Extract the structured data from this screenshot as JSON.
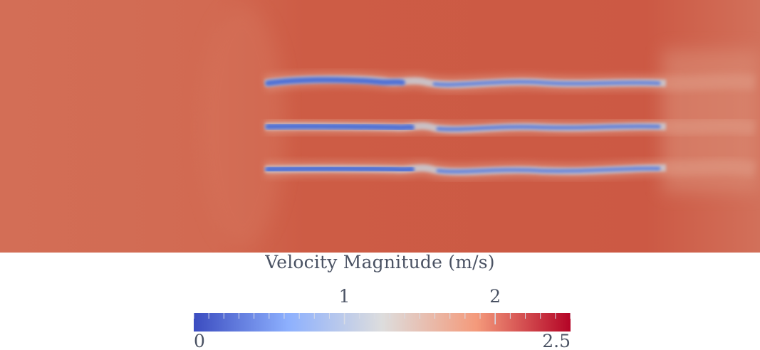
{
  "legend": {
    "title": "Velocity Magnitude (m/s)",
    "range": [
      0,
      2.5
    ],
    "min_label": "0",
    "max_label": "2.5",
    "major_ticks": [
      {
        "value": 1,
        "label": "1"
      },
      {
        "value": 2,
        "label": "2"
      }
    ],
    "colormap": "cool-to-warm",
    "colormap_stops": [
      "#3b4cc0",
      "#8db0fe",
      "#dddddd",
      "#f49a7b",
      "#b40426"
    ]
  },
  "colors": {
    "freestream": "#cf604a",
    "inlet_region": "#d16b53",
    "wake_core": "#4e6fd6",
    "text": "#4a5263"
  }
}
